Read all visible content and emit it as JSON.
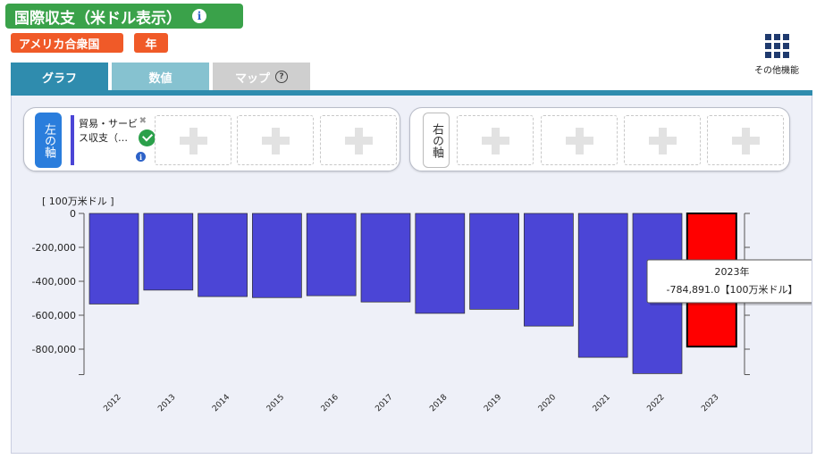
{
  "header": {
    "title": "国際収支（米ドル表示）",
    "info_icon": "info-icon"
  },
  "filters": {
    "country": "アメリカ合衆国",
    "period": "年"
  },
  "toolbar": {
    "other_functions_label": "その他機能",
    "other_functions_icon": "grid-icon"
  },
  "tabs": [
    {
      "label": "グラフ",
      "active": true
    },
    {
      "label": "数値",
      "active": false
    },
    {
      "label": "マップ",
      "active": false,
      "icon": "help-icon"
    }
  ],
  "axes_config": {
    "left_axis_label": "左の軸",
    "right_axis_label": "右の軸",
    "left_series": {
      "name": "貿易・サービス収支（…",
      "color": "#4b45d6"
    },
    "add_slot_icon": "plus-icon"
  },
  "colors": {
    "bar": "#4b45d6",
    "highlight_bar": "#ff0000",
    "highlight_label": "#e0001b",
    "title_bg": "#3aa24a",
    "tag_bg": "#f05a28",
    "tab_active": "#2f8cae"
  },
  "chart_data": {
    "type": "bar",
    "unit_label": "[ 100万米ドル ]",
    "categories": [
      "2012",
      "2013",
      "2014",
      "2015",
      "2016",
      "2017",
      "2018",
      "2019",
      "2020",
      "2021",
      "2022",
      "2023"
    ],
    "values": [
      -534000,
      -452000,
      -490000,
      -496000,
      -485000,
      -522000,
      -589000,
      -565000,
      -664000,
      -848000,
      -944000,
      -784891
    ],
    "ylim": [
      -950000,
      0
    ],
    "yticks": [
      0,
      -200000,
      -400000,
      -600000,
      -800000
    ],
    "ytick_labels": [
      "0",
      "-200,000",
      "-400,000",
      "-600,000",
      "-800,000"
    ],
    "highlight_index": 11,
    "tooltip": {
      "title": "2023年",
      "value": "-784,891.0【100万米ドル】"
    }
  }
}
